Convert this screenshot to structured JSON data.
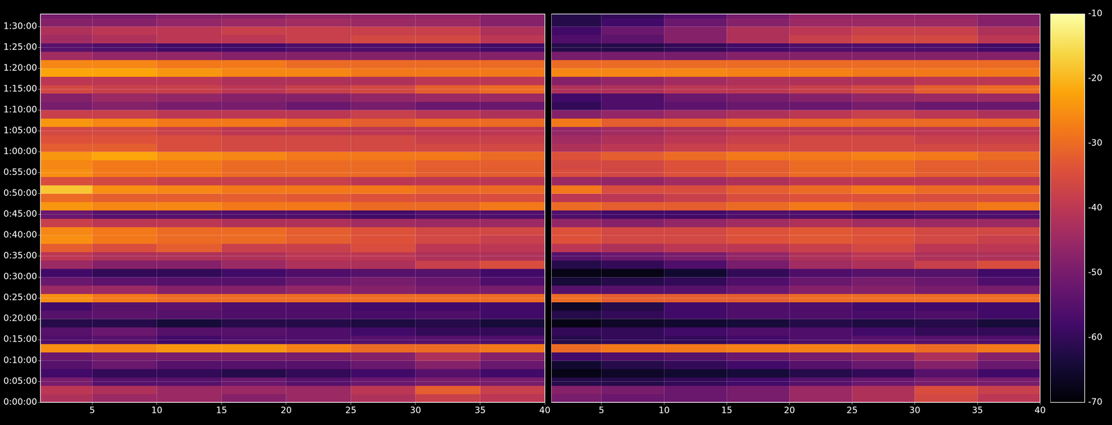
{
  "chart_data": [
    {
      "type": "heatmap",
      "grid": true,
      "xlim": [
        1,
        40
      ],
      "xticks": [
        5,
        10,
        15,
        20,
        25,
        30,
        35,
        40
      ],
      "ylim": [
        0,
        5580
      ],
      "yticks": [
        {
          "value": 0,
          "label": "0:00:00"
        },
        {
          "value": 300,
          "label": "0:05:00"
        },
        {
          "value": 600,
          "label": "0:10:00"
        },
        {
          "value": 900,
          "label": "0:15:00"
        },
        {
          "value": 1200,
          "label": "0:20:00"
        },
        {
          "value": 1500,
          "label": "0:25:00"
        },
        {
          "value": 1800,
          "label": "0:30:00"
        },
        {
          "value": 2100,
          "label": "0:35:00"
        },
        {
          "value": 2400,
          "label": "0:40:00"
        },
        {
          "value": 2700,
          "label": "0:45:00"
        },
        {
          "value": 3000,
          "label": "0:50:00"
        },
        {
          "value": 3300,
          "label": "0:55:00"
        },
        {
          "value": 3600,
          "label": "1:00:00"
        },
        {
          "value": 3900,
          "label": "1:05:00"
        },
        {
          "value": 4200,
          "label": "1:10:00"
        },
        {
          "value": 4500,
          "label": "1:15:00"
        },
        {
          "value": 4800,
          "label": "1:20:00"
        },
        {
          "value": 5100,
          "label": "1:25:00"
        },
        {
          "value": 5400,
          "label": "1:30:00"
        }
      ],
      "x_bins": [
        1,
        5,
        10,
        15,
        20,
        25,
        30,
        35,
        40
      ],
      "y_bins": [
        0,
        120,
        240,
        360,
        480,
        600,
        720,
        840,
        960,
        1080,
        1200,
        1320,
        1440,
        1560,
        1680,
        1800,
        1920,
        2040,
        2160,
        2280,
        2400,
        2520,
        2640,
        2760,
        2880,
        3000,
        3120,
        3240,
        3360,
        3480,
        3600,
        3720,
        3840,
        3960,
        4080,
        4200,
        4320,
        4440,
        4560,
        4680,
        4800,
        4920,
        5040,
        5160,
        5280,
        5400,
        5520,
        5580
      ],
      "cells": [
        [
          -42,
          -45,
          -45,
          -48,
          -45,
          -42,
          -38,
          -40
        ],
        [
          -40,
          -42,
          -45,
          -45,
          -45,
          -40,
          -32,
          -38
        ],
        [
          -50,
          -55,
          -55,
          -52,
          -55,
          -52,
          -50,
          -50
        ],
        [
          -58,
          -60,
          -60,
          -62,
          -60,
          -58,
          -55,
          -58
        ],
        [
          -55,
          -52,
          -55,
          -55,
          -55,
          -52,
          -48,
          -52
        ],
        [
          -52,
          -50,
          -50,
          -50,
          -50,
          -48,
          -42,
          -48
        ],
        [
          -25,
          -26,
          -24,
          -24,
          -27,
          -30,
          -30,
          -28
        ],
        [
          -56,
          -55,
          -58,
          -56,
          -56,
          -55,
          -55,
          -56
        ],
        [
          -55,
          -52,
          -55,
          -55,
          -56,
          -58,
          -60,
          -60
        ],
        [
          -62,
          -62,
          -64,
          -62,
          -62,
          -63,
          -62,
          -64
        ],
        [
          -55,
          -54,
          -55,
          -56,
          -56,
          -57,
          -56,
          -58
        ],
        [
          -58,
          -55,
          -54,
          -56,
          -56,
          -58,
          -58,
          -58
        ],
        [
          -25,
          -28,
          -30,
          -30,
          -30,
          -30,
          -30,
          -30
        ],
        [
          -45,
          -45,
          -48,
          -48,
          -46,
          -48,
          -50,
          -50
        ],
        [
          -52,
          -54,
          -55,
          -55,
          -52,
          -50,
          -52,
          -56
        ],
        [
          -58,
          -60,
          -60,
          -58,
          -56,
          -55,
          -55,
          -58
        ],
        [
          -45,
          -48,
          -48,
          -45,
          -42,
          -42,
          -38,
          -35
        ],
        [
          -40,
          -42,
          -42,
          -42,
          -40,
          -40,
          -42,
          -42
        ],
        [
          -32,
          -35,
          -32,
          -38,
          -38,
          -35,
          -40,
          -40
        ],
        [
          -25,
          -28,
          -30,
          -30,
          -32,
          -34,
          -36,
          -38
        ],
        [
          -26,
          -28,
          -30,
          -30,
          -32,
          -34,
          -36,
          -36
        ],
        [
          -38,
          -40,
          -40,
          -42,
          -42,
          -44,
          -45,
          -45
        ],
        [
          -52,
          -55,
          -55,
          -56,
          -56,
          -58,
          -56,
          -56
        ],
        [
          -24,
          -26,
          -26,
          -28,
          -28,
          -30,
          -30,
          -28
        ],
        [
          -30,
          -32,
          -32,
          -32,
          -33,
          -34,
          -35,
          -35
        ],
        [
          -18,
          -25,
          -26,
          -28,
          -28,
          -28,
          -30,
          -30
        ],
        [
          -35,
          -36,
          -38,
          -38,
          -38,
          -40,
          -40,
          -40
        ],
        [
          -25,
          -28,
          -28,
          -30,
          -30,
          -30,
          -32,
          -32
        ],
        [
          -26,
          -28,
          -28,
          -30,
          -30,
          -30,
          -32,
          -32
        ],
        [
          -24,
          -22,
          -25,
          -26,
          -28,
          -28,
          -28,
          -30
        ],
        [
          -32,
          -32,
          -35,
          -36,
          -36,
          -36,
          -36,
          -36
        ],
        [
          -34,
          -34,
          -35,
          -36,
          -36,
          -36,
          -38,
          -38
        ],
        [
          -36,
          -36,
          -38,
          -40,
          -40,
          -40,
          -40,
          -40
        ],
        [
          -24,
          -26,
          -28,
          -28,
          -30,
          -32,
          -30,
          -30
        ],
        [
          -38,
          -38,
          -40,
          -40,
          -40,
          -38,
          -40,
          -42
        ],
        [
          -50,
          -48,
          -50,
          -50,
          -52,
          -50,
          -52,
          -52
        ],
        [
          -48,
          -45,
          -46,
          -48,
          -48,
          -46,
          -45,
          -45
        ],
        [
          -36,
          -38,
          -38,
          -40,
          -38,
          -36,
          -32,
          -30
        ],
        [
          -40,
          -40,
          -40,
          -42,
          -42,
          -42,
          -40,
          -40
        ],
        [
          -22,
          -22,
          -24,
          -26,
          -26,
          -28,
          -28,
          -28
        ],
        [
          -26,
          -26,
          -28,
          -28,
          -30,
          -30,
          -30,
          -30
        ],
        [
          -44,
          -46,
          -46,
          -48,
          -48,
          -48,
          -48,
          -48
        ],
        [
          -55,
          -56,
          -58,
          -58,
          -56,
          -56,
          -56,
          -58
        ],
        [
          -44,
          -42,
          -40,
          -40,
          -38,
          -36,
          -36,
          -40
        ],
        [
          -42,
          -40,
          -40,
          -38,
          -38,
          -38,
          -38,
          -42
        ],
        [
          -48,
          -48,
          -46,
          -45,
          -44,
          -45,
          -45,
          -48
        ],
        [
          -50,
          -50,
          -48,
          -48,
          -46,
          -46,
          -46,
          -48
        ]
      ]
    },
    {
      "type": "heatmap",
      "grid": true,
      "tick_labels": "x",
      "xlim": [
        1,
        40
      ],
      "xticks": [
        5,
        10,
        15,
        20,
        25,
        30,
        35,
        40
      ],
      "ylim": [
        0,
        5580
      ],
      "yticks": [
        {
          "value": 0,
          "label": "0:00:00"
        },
        {
          "value": 300,
          "label": "0:05:00"
        },
        {
          "value": 600,
          "label": "0:10:00"
        },
        {
          "value": 900,
          "label": "0:15:00"
        },
        {
          "value": 1200,
          "label": "0:20:00"
        },
        {
          "value": 1500,
          "label": "0:25:00"
        },
        {
          "value": 1800,
          "label": "0:30:00"
        },
        {
          "value": 2100,
          "label": "0:35:00"
        },
        {
          "value": 2400,
          "label": "0:40:00"
        },
        {
          "value": 2700,
          "label": "0:45:00"
        },
        {
          "value": 3000,
          "label": "0:50:00"
        },
        {
          "value": 3300,
          "label": "0:55:00"
        },
        {
          "value": 3600,
          "label": "1:00:00"
        },
        {
          "value": 3900,
          "label": "1:05:00"
        },
        {
          "value": 4200,
          "label": "1:10:00"
        },
        {
          "value": 4500,
          "label": "1:15:00"
        },
        {
          "value": 4800,
          "label": "1:20:00"
        },
        {
          "value": 5100,
          "label": "1:25:00"
        },
        {
          "value": 5400,
          "label": "1:30:00"
        }
      ],
      "x_bins": [
        1,
        5,
        10,
        15,
        20,
        25,
        30,
        35,
        40
      ],
      "y_bins": [
        0,
        120,
        240,
        360,
        480,
        600,
        720,
        840,
        960,
        1080,
        1200,
        1320,
        1440,
        1560,
        1680,
        1800,
        1920,
        2040,
        2160,
        2280,
        2400,
        2520,
        2640,
        2760,
        2880,
        3000,
        3120,
        3240,
        3360,
        3480,
        3600,
        3720,
        3840,
        3960,
        4080,
        4200,
        4320,
        4440,
        4560,
        4680,
        4800,
        4920,
        5040,
        5160,
        5280,
        5400,
        5520,
        5580
      ],
      "cells": [
        [
          -50,
          -52,
          -52,
          -50,
          -45,
          -42,
          -36,
          -40
        ],
        [
          -48,
          -50,
          -52,
          -50,
          -45,
          -42,
          -35,
          -38
        ],
        [
          -62,
          -62,
          -60,
          -58,
          -55,
          -52,
          -50,
          -50
        ],
        [
          -68,
          -66,
          -65,
          -64,
          -62,
          -60,
          -55,
          -58
        ],
        [
          -65,
          -62,
          -60,
          -58,
          -55,
          -52,
          -48,
          -52
        ],
        [
          -58,
          -56,
          -55,
          -52,
          -50,
          -48,
          -42,
          -48
        ],
        [
          -30,
          -28,
          -28,
          -27,
          -27,
          -28,
          -30,
          -28
        ],
        [
          -62,
          -60,
          -60,
          -58,
          -56,
          -55,
          -55,
          -56
        ],
        [
          -60,
          -60,
          -58,
          -56,
          -56,
          -58,
          -60,
          -60
        ],
        [
          -68,
          -66,
          -65,
          -64,
          -62,
          -63,
          -62,
          -64
        ],
        [
          -62,
          -60,
          -58,
          -56,
          -56,
          -57,
          -56,
          -58
        ],
        [
          -66,
          -62,
          -58,
          -56,
          -56,
          -58,
          -58,
          -58
        ],
        [
          -30,
          -32,
          -32,
          -32,
          -30,
          -30,
          -30,
          -30
        ],
        [
          -55,
          -55,
          -55,
          -52,
          -48,
          -48,
          -50,
          -50
        ],
        [
          -64,
          -62,
          -60,
          -56,
          -52,
          -50,
          -52,
          -56
        ],
        [
          -68,
          -68,
          -65,
          -60,
          -56,
          -55,
          -55,
          -58
        ],
        [
          -62,
          -60,
          -56,
          -50,
          -44,
          -42,
          -38,
          -35
        ],
        [
          -55,
          -52,
          -50,
          -46,
          -42,
          -40,
          -42,
          -42
        ],
        [
          -40,
          -42,
          -40,
          -40,
          -38,
          -36,
          -40,
          -40
        ],
        [
          -34,
          -36,
          -36,
          -34,
          -33,
          -34,
          -36,
          -38
        ],
        [
          -34,
          -36,
          -36,
          -34,
          -33,
          -34,
          -36,
          -36
        ],
        [
          -46,
          -48,
          -46,
          -44,
          -42,
          -44,
          -45,
          -45
        ],
        [
          -56,
          -58,
          -58,
          -56,
          -56,
          -58,
          -56,
          -56
        ],
        [
          -30,
          -32,
          -32,
          -30,
          -28,
          -30,
          -30,
          -28
        ],
        [
          -40,
          -40,
          -38,
          -35,
          -34,
          -34,
          -35,
          -35
        ],
        [
          -28,
          -35,
          -35,
          -32,
          -30,
          -28,
          -30,
          -30
        ],
        [
          -45,
          -46,
          -44,
          -42,
          -40,
          -40,
          -40,
          -40
        ],
        [
          -35,
          -36,
          -34,
          -32,
          -30,
          -30,
          -32,
          -32
        ],
        [
          -36,
          -36,
          -34,
          -32,
          -30,
          -30,
          -32,
          -32
        ],
        [
          -34,
          -32,
          -30,
          -28,
          -28,
          -27,
          -28,
          -30
        ],
        [
          -42,
          -40,
          -38,
          -36,
          -36,
          -36,
          -36,
          -36
        ],
        [
          -44,
          -42,
          -40,
          -38,
          -36,
          -36,
          -38,
          -38
        ],
        [
          -46,
          -44,
          -42,
          -40,
          -40,
          -40,
          -40,
          -40
        ],
        [
          -28,
          -32,
          -32,
          -30,
          -30,
          -30,
          -30,
          -30
        ],
        [
          -48,
          -46,
          -44,
          -42,
          -40,
          -38,
          -40,
          -42
        ],
        [
          -60,
          -56,
          -54,
          -52,
          -52,
          -50,
          -52,
          -52
        ],
        [
          -58,
          -56,
          -52,
          -50,
          -48,
          -46,
          -45,
          -45
        ],
        [
          -42,
          -42,
          -40,
          -40,
          -38,
          -36,
          -32,
          -30
        ],
        [
          -48,
          -46,
          -44,
          -42,
          -42,
          -42,
          -40,
          -40
        ],
        [
          -26,
          -26,
          -26,
          -27,
          -27,
          -28,
          -28,
          -28
        ],
        [
          -30,
          -30,
          -30,
          -30,
          -30,
          -30,
          -30,
          -30
        ],
        [
          -50,
          -50,
          -50,
          -48,
          -48,
          -48,
          -48,
          -48
        ],
        [
          -62,
          -62,
          -60,
          -58,
          -56,
          -56,
          -56,
          -58
        ],
        [
          -56,
          -54,
          -48,
          -42,
          -38,
          -36,
          -36,
          -40
        ],
        [
          -58,
          -52,
          -48,
          -42,
          -40,
          -38,
          -38,
          -42
        ],
        [
          -62,
          -58,
          -52,
          -48,
          -45,
          -45,
          -45,
          -48
        ],
        [
          -62,
          -60,
          -55,
          -50,
          -46,
          -46,
          -46,
          -48
        ]
      ],
      "colorbar": {
        "range": [
          -70,
          -10
        ],
        "ticks": [
          -70,
          -60,
          -50,
          -40,
          -30,
          -20,
          -10
        ]
      }
    }
  ]
}
